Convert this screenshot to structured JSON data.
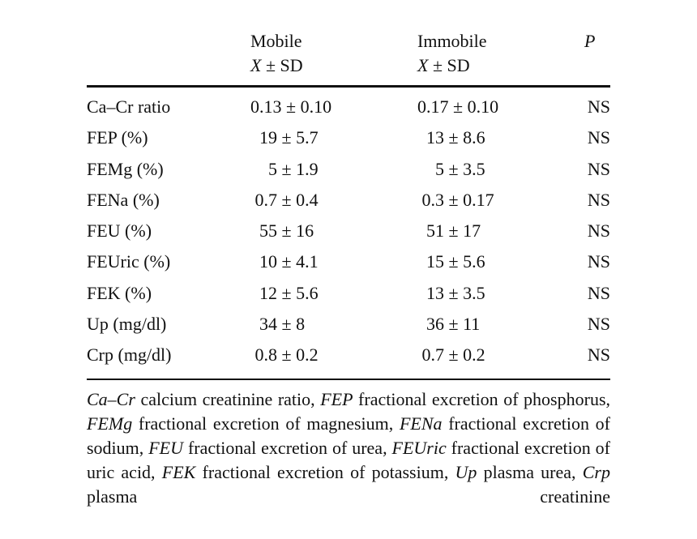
{
  "table": {
    "header": {
      "mobile": "Mobile",
      "mobile_sub_var": "X",
      "mobile_sub_rest": " ± SD",
      "immobile": "Immobile",
      "immobile_sub_var": "X",
      "immobile_sub_rest": " ± SD",
      "p": "P"
    },
    "rows": [
      {
        "label": "Ca–Cr ratio",
        "mobile": "0.13 ± 0.10",
        "immobile": "0.17 ± 0.10",
        "p": "NS"
      },
      {
        "label": "FEP (%)",
        "mobile": "  19 ± 5.7",
        "immobile": "  13 ± 8.6",
        "p": "NS"
      },
      {
        "label": "FEMg (%)",
        "mobile": "    5 ± 1.9",
        "immobile": "    5 ± 3.5",
        "p": "NS"
      },
      {
        "label": "FENa (%)",
        "mobile": " 0.7 ± 0.4",
        "immobile": " 0.3 ± 0.17",
        "p": "NS"
      },
      {
        "label": "FEU (%)",
        "mobile": "  55 ± 16",
        "immobile": "  51 ± 17",
        "p": "NS"
      },
      {
        "label": "FEUric (%)",
        "mobile": "  10 ± 4.1",
        "immobile": "  15 ± 5.6",
        "p": "NS"
      },
      {
        "label": "FEK (%)",
        "mobile": "  12 ± 5.6",
        "immobile": "  13 ± 3.5",
        "p": "NS"
      },
      {
        "label": "Up (mg/dl)",
        "mobile": "  34 ± 8",
        "immobile": "  36 ± 11",
        "p": "NS"
      },
      {
        "label": "Crp (mg/dl)",
        "mobile": " 0.8 ± 0.2",
        "immobile": " 0.7 ± 0.2",
        "p": "NS"
      }
    ]
  },
  "footnote": {
    "items": [
      {
        "abbr": "Ca–Cr",
        "text": " calcium creatinine ratio, "
      },
      {
        "abbr": "FEP",
        "text": " fractional excretion of phosphorus, "
      },
      {
        "abbr": "FEMg",
        "text": " fractional excretion of magnesium, "
      },
      {
        "abbr": "FENa",
        "text": " fractional excretion of sodium, "
      },
      {
        "abbr": "FEU",
        "text": " fractional excretion of urea, "
      },
      {
        "abbr": "FEUric",
        "text": " fractional excretion of uric acid, "
      },
      {
        "abbr": "FEK",
        "text": " fractional excretion of potassium, "
      },
      {
        "abbr": "Up",
        "text": " plasma urea, "
      },
      {
        "abbr": "Crp",
        "text": " plasma creatinine"
      }
    ]
  }
}
